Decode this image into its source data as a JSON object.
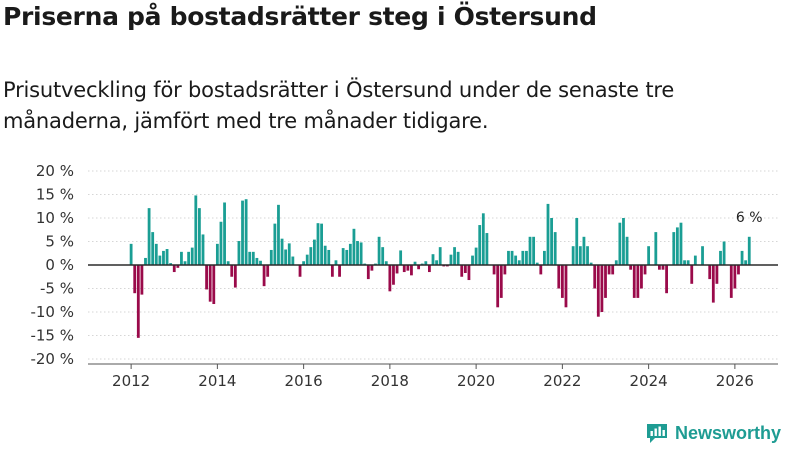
{
  "title": "Priserna på bostadsrätter steg i Östersund",
  "subtitle": "Prisutveckling för bostadsrätter i Östersund under de senaste tre månaderna, jämfört med tre månader tidigare.",
  "brand": {
    "name": "Newsworthy",
    "color": "#1e9c93"
  },
  "colors": {
    "positive": "#1a9e94",
    "negative": "#9a0a4a"
  },
  "chart_data": {
    "type": "bar",
    "title": "Priserna på bostadsrätter steg i Östersund",
    "xlabel": "",
    "ylabel": "",
    "ylim": [
      -20,
      20
    ],
    "xlim": [
      2011.0,
      2027.0
    ],
    "y_ticks": [
      20,
      15,
      10,
      5,
      0,
      -5,
      -10,
      -15,
      -20
    ],
    "y_tick_labels": [
      "20 %",
      "15 %",
      "10 %",
      "5 %",
      "0 %",
      "-5 %",
      "-10 %",
      "-15 %",
      "-20 %"
    ],
    "x_ticks": [
      2012,
      2014,
      2016,
      2018,
      2020,
      2022,
      2024,
      2026
    ],
    "x_tick_labels": [
      "2012",
      "2014",
      "2016",
      "2018",
      "2020",
      "2022",
      "2024",
      "2026"
    ],
    "start": {
      "year": 2012,
      "month": 1
    },
    "values": [
      4.5,
      -6.0,
      -15.5,
      -6.3,
      1.5,
      12.1,
      7.0,
      4.5,
      2.0,
      3.0,
      3.4,
      0.4,
      -1.5,
      -0.6,
      2.8,
      0.8,
      2.8,
      3.7,
      14.8,
      12.1,
      6.5,
      -5.2,
      -7.8,
      -8.3,
      4.5,
      9.2,
      13.3,
      0.8,
      -2.5,
      -4.8,
      5.1,
      13.7,
      14.0,
      2.8,
      2.8,
      1.5,
      0.9,
      -4.5,
      -2.5,
      3.2,
      8.8,
      12.8,
      5.6,
      3.3,
      4.6,
      1.8,
      0.0,
      -2.5,
      0.8,
      2.2,
      3.8,
      5.4,
      8.9,
      8.8,
      4.1,
      3.2,
      -2.5,
      1.0,
      -2.5,
      3.6,
      3.2,
      4.5,
      7.7,
      5.1,
      4.8,
      0.3,
      -3.0,
      -1.2,
      0.3,
      6.0,
      3.8,
      0.8,
      -5.6,
      -4.2,
      -1.8,
      3.1,
      -1.5,
      -1.2,
      -2.2,
      0.7,
      -0.9,
      0.3,
      0.8,
      -1.5,
      2.3,
      1.0,
      3.8,
      -0.3,
      -0.3,
      2.2,
      3.8,
      2.8,
      -2.5,
      -1.7,
      -3.2,
      2.0,
      3.7,
      8.5,
      11.0,
      6.8,
      0.0,
      -2.0,
      -9.0,
      -7.0,
      -2.0,
      3.0,
      3.0,
      2.0,
      1.0,
      3.0,
      3.0,
      6.0,
      6.0,
      0.5,
      -2.0,
      3.0,
      13.0,
      10.0,
      7.0,
      -5.0,
      -7.0,
      -9.0,
      0.0,
      4.0,
      10.0,
      4.0,
      6.0,
      4.0,
      0.5,
      -5.0,
      -11.0,
      -10.0,
      -7.0,
      -2.0,
      -2.0,
      1.0,
      9.0,
      10.0,
      6.0,
      -1.0,
      -7.0,
      -7.0,
      -5.0,
      -2.0,
      4.0,
      0.0,
      7.0,
      -1.0,
      -1.0,
      -6.0,
      0.0,
      7.0,
      8.0,
      9.0,
      1.0,
      1.0,
      -4.0,
      2.0,
      0.0,
      4.0,
      0.0,
      -3.0,
      -8.0,
      -4.0,
      3.0,
      5.0,
      0.0,
      -7.0,
      -5.0,
      -2.0,
      3.0,
      1.0,
      6.0
    ],
    "annotation": {
      "text": "6 %",
      "value": 6
    }
  }
}
